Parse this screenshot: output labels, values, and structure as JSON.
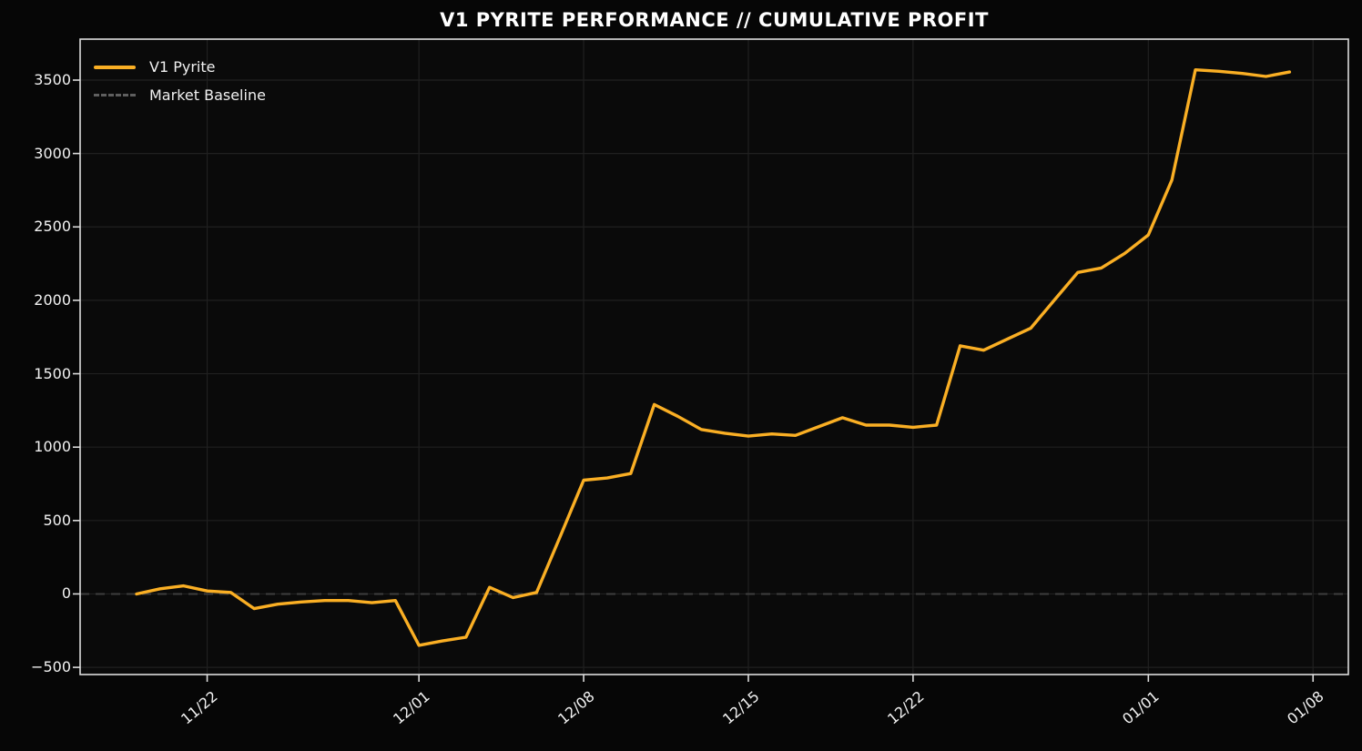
{
  "chart_data": {
    "type": "line",
    "title": "V1 PYRITE PERFORMANCE // CUMULATIVE PROFIT",
    "xlabel": "",
    "ylabel": "",
    "grid": true,
    "legend_position": "upper-left",
    "x": [
      "11/19",
      "11/20",
      "11/21",
      "11/22",
      "11/23",
      "11/24",
      "11/25",
      "11/26",
      "11/27",
      "11/28",
      "11/29",
      "11/30",
      "12/01",
      "12/02",
      "12/03",
      "12/04",
      "12/05",
      "12/06",
      "12/07",
      "12/08",
      "12/09",
      "12/10",
      "12/11",
      "12/12",
      "12/13",
      "12/14",
      "12/15",
      "12/16",
      "12/17",
      "12/18",
      "12/19",
      "12/20",
      "12/21",
      "12/22",
      "12/23",
      "12/24",
      "12/25",
      "12/26",
      "12/27",
      "12/28",
      "12/29",
      "12/30",
      "12/31",
      "01/01",
      "01/02",
      "01/03",
      "01/04",
      "01/05",
      "01/06",
      "01/07"
    ],
    "series": [
      {
        "name": "V1 Pyrite",
        "style": "solid",
        "color": "#FAAF24",
        "values": [
          0,
          35,
          55,
          20,
          10,
          -100,
          -70,
          -55,
          -45,
          -45,
          -60,
          -45,
          -350,
          -320,
          -295,
          45,
          -25,
          10,
          390,
          775,
          790,
          820,
          1290,
          1210,
          1120,
          1095,
          1075,
          1090,
          1080,
          1140,
          1200,
          1150,
          1150,
          1135,
          1150,
          1690,
          1660,
          1735,
          1810,
          2000,
          2190,
          2220,
          2320,
          2445,
          2820,
          3570,
          3560,
          3545,
          3525,
          3555
        ]
      },
      {
        "name": "Market Baseline",
        "style": "dashed",
        "color": "#5f5f5f",
        "plot_color": "#3d3d3d",
        "constant_value": 0
      }
    ],
    "y_ticks": [
      -500,
      0,
      500,
      1000,
      1500,
      2000,
      2500,
      3000,
      3500
    ],
    "y_tick_labels": [
      "−500",
      "0",
      "500",
      "1000",
      "1500",
      "2000",
      "2500",
      "3000",
      "3500"
    ],
    "x_tick_labels": [
      "11/22",
      "12/01",
      "12/08",
      "12/15",
      "12/22",
      "01/01",
      "01/08"
    ],
    "x_tick_day_index": [
      3,
      12,
      19,
      26,
      33,
      43,
      50
    ],
    "xlim_day_index": [
      -2.4,
      51.5
    ],
    "ylim": [
      -549,
      3779
    ],
    "colors": {
      "background": "#060606",
      "axes_background": "#0a0a0a",
      "grid": "#202020",
      "spine": "#dcdcdc",
      "baseline": "#3d3d3d",
      "line": "#FAAF24",
      "tick_label": "#f2f2f2",
      "title": "#ffffff"
    }
  }
}
